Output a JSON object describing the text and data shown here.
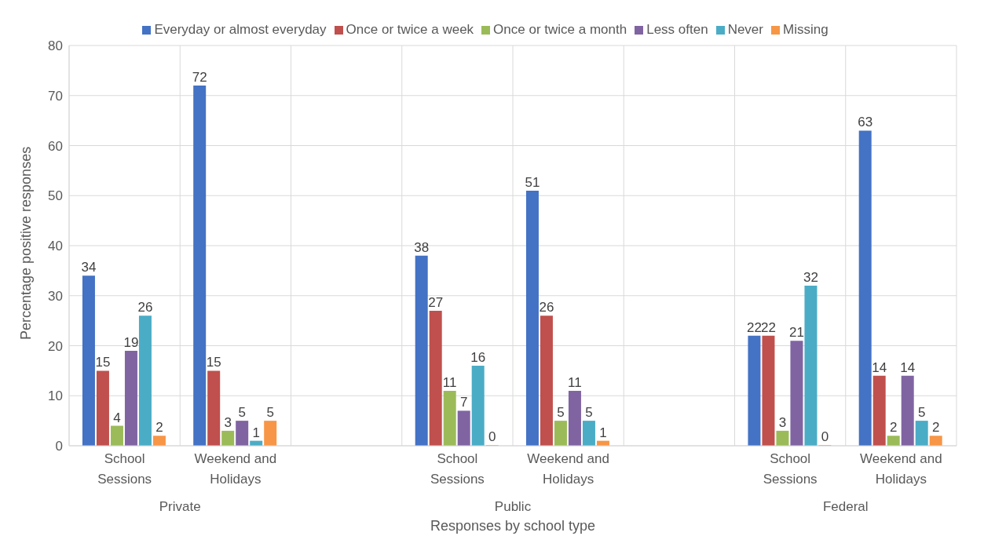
{
  "chart_data": {
    "type": "bar",
    "xlabel": "Responses by school type",
    "ylabel": "Percentage positive responses",
    "categories": [
      "School Sessions",
      "Weekend and Holidays",
      null,
      "School Sessions",
      "Weekend and Holidays",
      null,
      "School Sessions",
      "Weekend and Holidays"
    ],
    "series": [
      {
        "name": "Everyday or almost everyday",
        "color": "#4472c4",
        "values": [
          34,
          72,
          null,
          38,
          51,
          null,
          22,
          63
        ]
      },
      {
        "name": "Once or twice a week",
        "color": "#c0504d",
        "values": [
          15,
          15,
          null,
          27,
          26,
          null,
          22,
          14
        ]
      },
      {
        "name": "Once or twice a month",
        "color": "#9bbb59",
        "values": [
          4,
          3,
          null,
          11,
          5,
          null,
          3,
          2
        ]
      },
      {
        "name": "Less often",
        "color": "#8064a2",
        "values": [
          19,
          5,
          null,
          7,
          11,
          null,
          21,
          14
        ]
      },
      {
        "name": "Never",
        "color": "#4bacc6",
        "values": [
          26,
          1,
          null,
          16,
          5,
          null,
          32,
          5
        ]
      },
      {
        "name": "Missing",
        "color": "#f79646",
        "values": [
          2,
          5,
          null,
          0,
          1,
          null,
          0,
          2
        ]
      }
    ],
    "annotations": [
      "Private",
      "Public",
      "Federal"
    ],
    "ylim": [
      0,
      80
    ],
    "yticks": [
      0,
      10,
      20,
      30,
      40,
      50,
      60,
      70,
      80
    ],
    "grid": true,
    "legend": "top",
    "data_labels": true
  }
}
